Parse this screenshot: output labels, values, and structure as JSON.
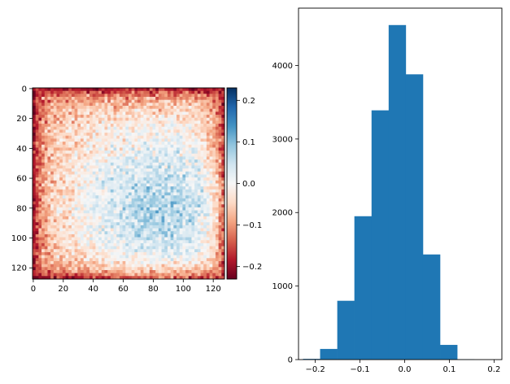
{
  "chart_data": [
    {
      "type": "heatmap",
      "title": "",
      "xlabel": "",
      "ylabel": "",
      "xlim": [
        0,
        128
      ],
      "ylim": [
        128,
        0
      ],
      "xticks": [
        0,
        20,
        40,
        60,
        80,
        100,
        120
      ],
      "yticks": [
        0,
        20,
        40,
        60,
        80,
        100,
        120
      ],
      "grid_size": [
        128,
        128
      ],
      "pattern": "noisy radial field: negative (red) at corners and edges, positive (blue) concentrated near column 85, row 80",
      "center": [
        85,
        80
      ],
      "value_range": [
        -0.23,
        0.23
      ],
      "colormap": "RdBu",
      "colorbar": {
        "ticks": [
          -0.2,
          -0.1,
          0.0,
          0.1,
          0.2
        ],
        "tick_labels": [
          "−0.2",
          "−0.1",
          "0.0",
          "0.1",
          "0.2"
        ],
        "stops": [
          "#67001f",
          "#b2182b",
          "#d6604d",
          "#f4a582",
          "#fddbc7",
          "#f7f7f7",
          "#d1e5f0",
          "#92c5de",
          "#4393c3",
          "#2166ac",
          "#053061"
        ]
      }
    },
    {
      "type": "bar",
      "subtype": "histogram",
      "title": "",
      "xlabel": "",
      "ylabel": "",
      "bin_edges": [
        -0.2275,
        -0.1892,
        -0.1508,
        -0.1125,
        -0.0741,
        -0.0358,
        0.0025,
        0.0409,
        0.0792,
        0.1176,
        0.1559
      ],
      "values": [
        10,
        145,
        800,
        1950,
        3390,
        4550,
        3880,
        1430,
        200,
        5
      ],
      "xlim": [
        -0.2375,
        0.2175
      ],
      "ylim": [
        0,
        4780
      ],
      "xticks": [
        -0.2,
        -0.1,
        0.0,
        0.1,
        0.2
      ],
      "xtick_labels": [
        "−0.2",
        "−0.1",
        "0.0",
        "0.1",
        "0.2"
      ],
      "yticks": [
        0,
        1000,
        2000,
        3000,
        4000
      ],
      "ytick_labels": [
        "0",
        "1000",
        "2000",
        "3000",
        "4000"
      ],
      "bar_color": "#1f77b4"
    }
  ]
}
